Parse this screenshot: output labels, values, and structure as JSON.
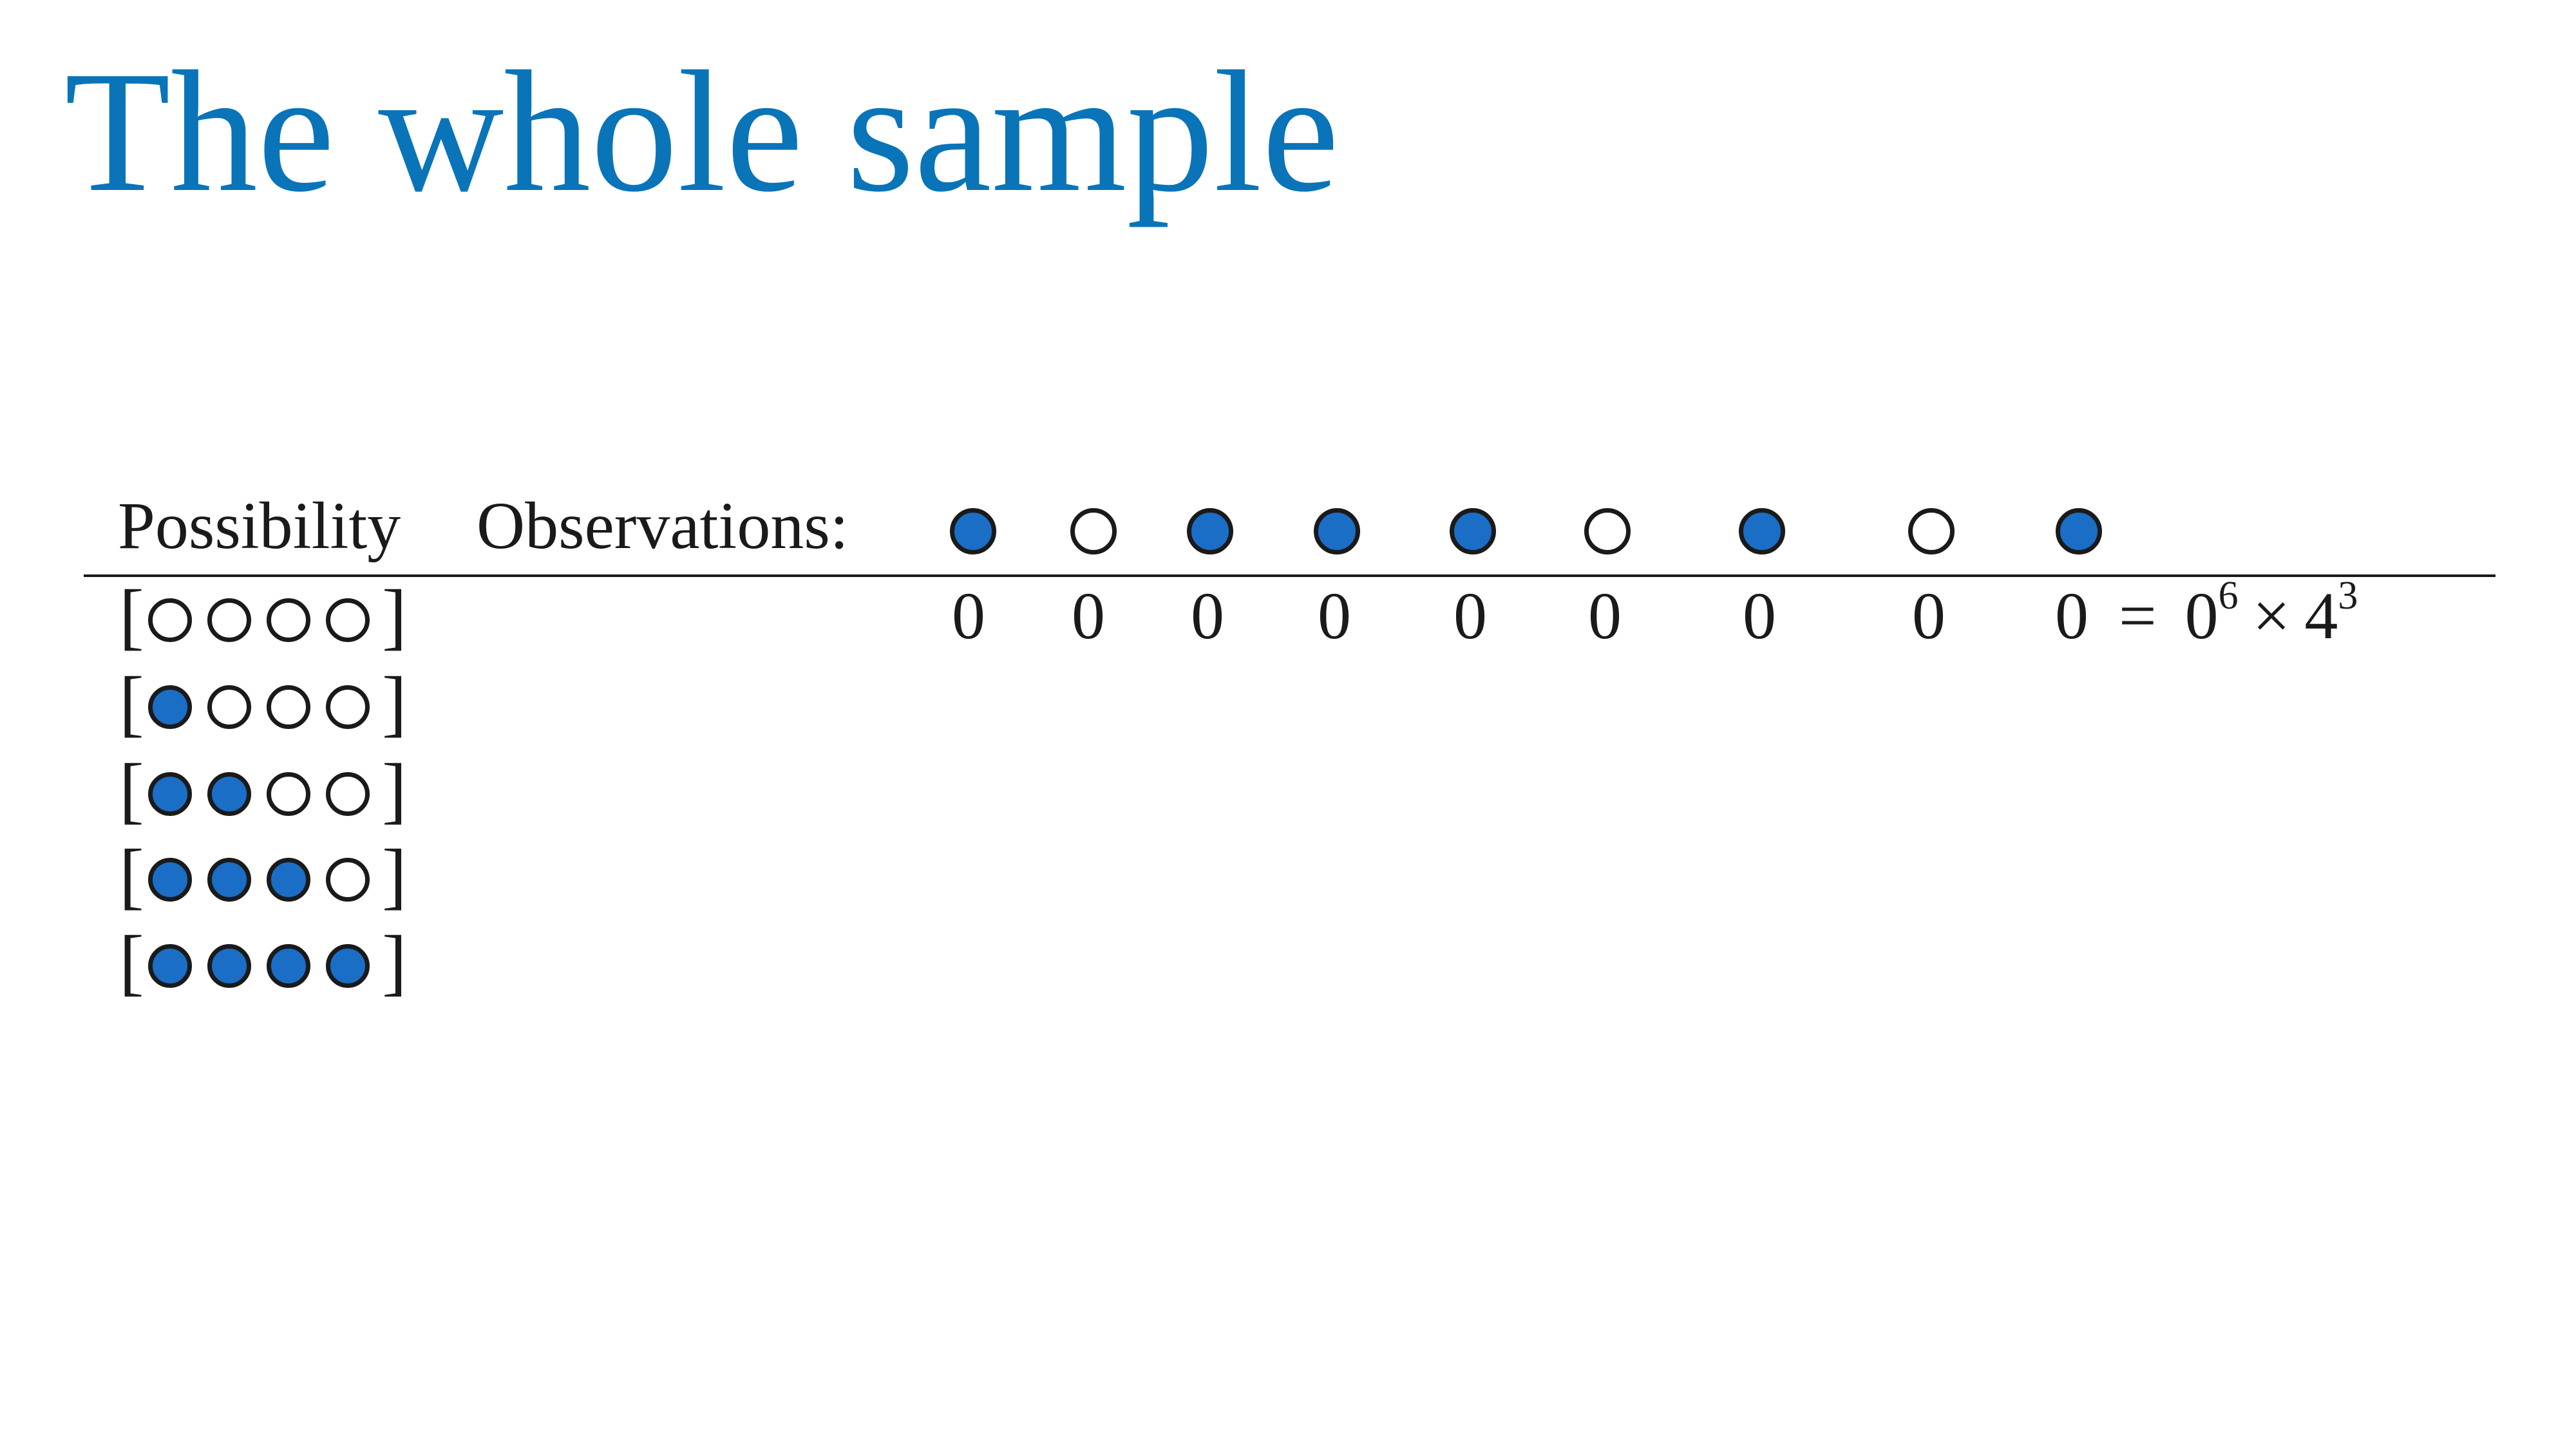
{
  "title": "The whole sample",
  "header": {
    "possibility_label": "Possibility",
    "observations_label": "Observations:"
  },
  "observations": [
    "blue",
    "white",
    "blue",
    "blue",
    "blue",
    "white",
    "blue",
    "white",
    "blue"
  ],
  "possibilities": [
    [
      "white",
      "white",
      "white",
      "white"
    ],
    [
      "blue",
      "white",
      "white",
      "white"
    ],
    [
      "blue",
      "blue",
      "white",
      "white"
    ],
    [
      "blue",
      "blue",
      "blue",
      "white"
    ],
    [
      "blue",
      "blue",
      "blue",
      "blue"
    ]
  ],
  "brackets": {
    "open": "[",
    "close": "]"
  },
  "row_counts": [
    "0",
    "0",
    "0",
    "0",
    "0",
    "0",
    "0",
    "0",
    "0"
  ],
  "product": {
    "equals": "=",
    "base1": "0",
    "exp1": "6",
    "times": "×",
    "base2": "4",
    "exp2": "3"
  },
  "colors": {
    "title": "#0a74b9",
    "blue_marble": "#1a6ec6",
    "white_marble": "#ffffff",
    "ink": "#1a1a1a"
  }
}
